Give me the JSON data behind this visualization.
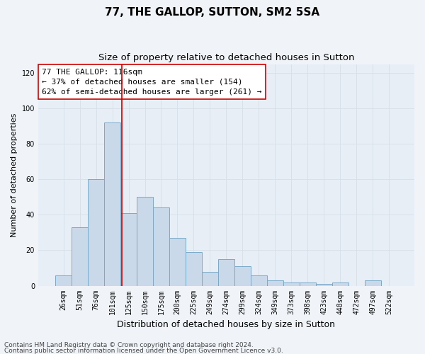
{
  "title": "77, THE GALLOP, SUTTON, SM2 5SA",
  "subtitle": "Size of property relative to detached houses in Sutton",
  "xlabel": "Distribution of detached houses by size in Sutton",
  "ylabel": "Number of detached properties",
  "categories": [
    "26sqm",
    "51sqm",
    "76sqm",
    "101sqm",
    "125sqm",
    "150sqm",
    "175sqm",
    "200sqm",
    "225sqm",
    "249sqm",
    "274sqm",
    "299sqm",
    "324sqm",
    "349sqm",
    "373sqm",
    "398sqm",
    "423sqm",
    "448sqm",
    "472sqm",
    "497sqm",
    "522sqm"
  ],
  "values": [
    6,
    33,
    60,
    92,
    41,
    50,
    44,
    27,
    19,
    8,
    15,
    11,
    6,
    3,
    2,
    2,
    1,
    2,
    0,
    3,
    0
  ],
  "bar_color": "#c9d9ea",
  "bar_edge_color": "#7aaac8",
  "vline_x_index": 3.6,
  "vline_color": "#cc0000",
  "annotation_text": "77 THE GALLOP: 116sqm\n← 37% of detached houses are smaller (154)\n62% of semi-detached houses are larger (261) →",
  "annotation_box_facecolor": "#ffffff",
  "annotation_box_edgecolor": "#cc0000",
  "ylim_max": 125,
  "yticks": [
    0,
    20,
    40,
    60,
    80,
    100,
    120
  ],
  "grid_color": "#d5dfe8",
  "plot_bg_color": "#e8eef5",
  "fig_bg_color": "#f0f4f8",
  "footer_line1": "Contains HM Land Registry data © Crown copyright and database right 2024.",
  "footer_line2": "Contains public sector information licensed under the Open Government Licence v3.0.",
  "title_fontsize": 11,
  "subtitle_fontsize": 9.5,
  "xlabel_fontsize": 9,
  "ylabel_fontsize": 8,
  "tick_fontsize": 7,
  "annotation_fontsize": 8,
  "footer_fontsize": 6.5
}
